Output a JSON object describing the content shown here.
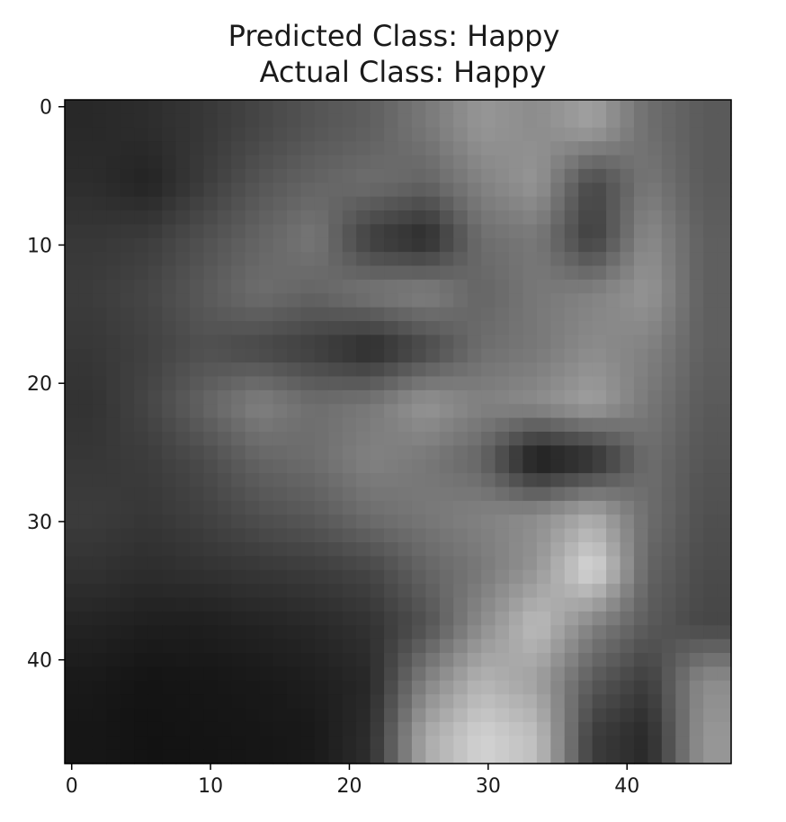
{
  "title": {
    "line1": "Predicted Class: Happy",
    "line2": "Actual Class: Happy"
  },
  "chart_data": {
    "type": "heatmap",
    "colormap": "gray",
    "shape": [
      48,
      48
    ],
    "xlim": [
      -0.5,
      47.5
    ],
    "ylim": [
      47.5,
      -0.5
    ],
    "xticks": [
      0,
      10,
      20,
      30,
      40
    ],
    "yticks": [
      0,
      10,
      20,
      30,
      40
    ],
    "xticklabels": [
      "0",
      "10",
      "20",
      "30",
      "40"
    ],
    "yticklabels": [
      "0",
      "10",
      "20",
      "30",
      "40"
    ],
    "image_rows_coarse_12x12": [
      [
        40,
        45,
        55,
        70,
        85,
        95,
        120,
        150,
        140,
        160,
        110,
        90
      ],
      [
        45,
        35,
        60,
        85,
        100,
        110,
        100,
        130,
        150,
        70,
        120,
        90
      ],
      [
        55,
        60,
        80,
        100,
        120,
        60,
        40,
        110,
        120,
        60,
        140,
        95
      ],
      [
        60,
        70,
        90,
        110,
        100,
        120,
        130,
        100,
        120,
        130,
        150,
        95
      ],
      [
        55,
        65,
        80,
        70,
        60,
        40,
        70,
        110,
        120,
        140,
        130,
        95
      ],
      [
        50,
        70,
        100,
        130,
        110,
        120,
        150,
        130,
        140,
        160,
        120,
        90
      ],
      [
        55,
        60,
        75,
        100,
        110,
        130,
        120,
        100,
        20,
        40,
        110,
        85
      ],
      [
        60,
        55,
        65,
        80,
        90,
        110,
        120,
        130,
        140,
        170,
        110,
        80
      ],
      [
        50,
        45,
        50,
        55,
        60,
        70,
        100,
        120,
        150,
        220,
        100,
        75
      ],
      [
        35,
        30,
        30,
        35,
        40,
        50,
        80,
        140,
        190,
        130,
        90,
        70
      ],
      [
        25,
        20,
        22,
        25,
        30,
        40,
        130,
        180,
        160,
        90,
        60,
        140
      ],
      [
        22,
        18,
        20,
        22,
        25,
        45,
        170,
        210,
        190,
        60,
        40,
        150
      ]
    ]
  }
}
